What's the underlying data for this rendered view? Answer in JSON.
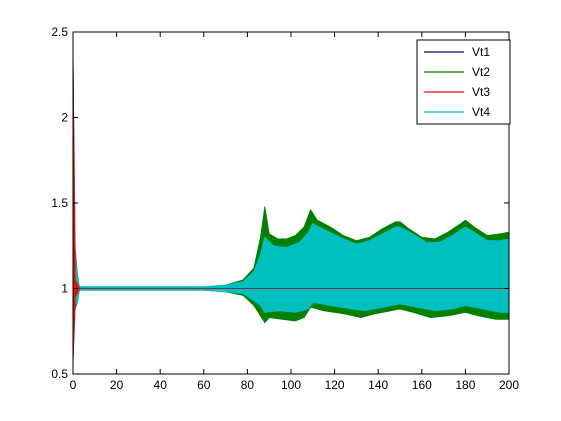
{
  "chart_data": {
    "type": "line",
    "title": "",
    "xlabel": "",
    "ylabel": "",
    "xlim": [
      0,
      200
    ],
    "ylim": [
      0.5,
      2.5
    ],
    "xticks": [
      0,
      20,
      40,
      60,
      80,
      100,
      120,
      140,
      160,
      180,
      200
    ],
    "yticks": [
      0.5,
      1,
      1.5,
      2,
      2.5
    ],
    "grid": false,
    "legend_position": "top-right",
    "series": [
      {
        "name": "Vt1",
        "color": "#000080",
        "envelope_upper": [
          [
            0,
            2.4
          ],
          [
            1,
            1.05
          ],
          [
            3,
            1.0
          ],
          [
            75,
            1.0
          ],
          [
            200,
            1.0
          ]
        ],
        "envelope_lower": [
          [
            0,
            0.55
          ],
          [
            1,
            0.95
          ],
          [
            3,
            1.0
          ],
          [
            75,
            1.0
          ],
          [
            200,
            1.0
          ]
        ]
      },
      {
        "name": "Vt2",
        "color": "#008000",
        "envelope_upper": [
          [
            0,
            2.4
          ],
          [
            1,
            1.24
          ],
          [
            2,
            1.08
          ],
          [
            3,
            1.01
          ],
          [
            60,
            1.01
          ],
          [
            70,
            1.02
          ],
          [
            78,
            1.05
          ],
          [
            83,
            1.12
          ],
          [
            86,
            1.3
          ],
          [
            88,
            1.48
          ],
          [
            90,
            1.32
          ],
          [
            94,
            1.29
          ],
          [
            98,
            1.29
          ],
          [
            102,
            1.31
          ],
          [
            106,
            1.36
          ],
          [
            109,
            1.46
          ],
          [
            112,
            1.4
          ],
          [
            118,
            1.36
          ],
          [
            124,
            1.31
          ],
          [
            130,
            1.28
          ],
          [
            136,
            1.3
          ],
          [
            142,
            1.35
          ],
          [
            148,
            1.39
          ],
          [
            150,
            1.39
          ],
          [
            154,
            1.35
          ],
          [
            160,
            1.3
          ],
          [
            166,
            1.29
          ],
          [
            172,
            1.33
          ],
          [
            178,
            1.38
          ],
          [
            180,
            1.4
          ],
          [
            184,
            1.36
          ],
          [
            190,
            1.31
          ],
          [
            196,
            1.32
          ],
          [
            200,
            1.33
          ]
        ],
        "envelope_lower": [
          [
            0,
            0.6
          ],
          [
            1,
            0.88
          ],
          [
            2,
            0.92
          ],
          [
            3,
            0.99
          ],
          [
            60,
            0.99
          ],
          [
            70,
            0.98
          ],
          [
            78,
            0.96
          ],
          [
            83,
            0.9
          ],
          [
            86,
            0.84
          ],
          [
            88,
            0.8
          ],
          [
            90,
            0.83
          ],
          [
            96,
            0.82
          ],
          [
            102,
            0.81
          ],
          [
            106,
            0.83
          ],
          [
            109,
            0.89
          ],
          [
            115,
            0.87
          ],
          [
            125,
            0.85
          ],
          [
            132,
            0.83
          ],
          [
            138,
            0.85
          ],
          [
            146,
            0.87
          ],
          [
            150,
            0.88
          ],
          [
            156,
            0.86
          ],
          [
            164,
            0.83
          ],
          [
            172,
            0.84
          ],
          [
            180,
            0.86
          ],
          [
            186,
            0.84
          ],
          [
            194,
            0.82
          ],
          [
            200,
            0.82
          ]
        ]
      },
      {
        "name": "Vt3",
        "color": "#ff0000",
        "envelope_upper": [
          [
            0,
            2.4
          ],
          [
            1,
            1.05
          ],
          [
            3,
            1.0
          ],
          [
            200,
            1.0
          ]
        ],
        "envelope_lower": [
          [
            0,
            0.55
          ],
          [
            1,
            0.95
          ],
          [
            3,
            1.0
          ],
          [
            200,
            1.0
          ]
        ]
      },
      {
        "name": "Vt4",
        "color": "#00bfbf",
        "envelope_upper": [
          [
            0,
            2.4
          ],
          [
            1,
            1.2
          ],
          [
            2,
            1.06
          ],
          [
            3,
            1.01
          ],
          [
            60,
            1.01
          ],
          [
            70,
            1.02
          ],
          [
            78,
            1.04
          ],
          [
            83,
            1.1
          ],
          [
            86,
            1.2
          ],
          [
            88,
            1.3
          ],
          [
            92,
            1.25
          ],
          [
            98,
            1.24
          ],
          [
            104,
            1.27
          ],
          [
            108,
            1.33
          ],
          [
            110,
            1.38
          ],
          [
            116,
            1.34
          ],
          [
            124,
            1.29
          ],
          [
            130,
            1.26
          ],
          [
            136,
            1.28
          ],
          [
            142,
            1.32
          ],
          [
            148,
            1.36
          ],
          [
            150,
            1.36
          ],
          [
            156,
            1.32
          ],
          [
            162,
            1.27
          ],
          [
            168,
            1.27
          ],
          [
            174,
            1.31
          ],
          [
            180,
            1.36
          ],
          [
            184,
            1.33
          ],
          [
            190,
            1.28
          ],
          [
            196,
            1.28
          ],
          [
            200,
            1.29
          ]
        ],
        "envelope_lower": [
          [
            0,
            0.55
          ],
          [
            1,
            0.9
          ],
          [
            2,
            0.93
          ],
          [
            3,
            0.99
          ],
          [
            60,
            0.99
          ],
          [
            70,
            0.98
          ],
          [
            78,
            0.97
          ],
          [
            83,
            0.93
          ],
          [
            86,
            0.9
          ],
          [
            88,
            0.86
          ],
          [
            94,
            0.87
          ],
          [
            102,
            0.86
          ],
          [
            108,
            0.88
          ],
          [
            110,
            0.92
          ],
          [
            118,
            0.9
          ],
          [
            128,
            0.88
          ],
          [
            134,
            0.87
          ],
          [
            142,
            0.89
          ],
          [
            150,
            0.91
          ],
          [
            158,
            0.89
          ],
          [
            166,
            0.87
          ],
          [
            174,
            0.88
          ],
          [
            180,
            0.9
          ],
          [
            188,
            0.88
          ],
          [
            196,
            0.86
          ],
          [
            200,
            0.86
          ]
        ]
      }
    ]
  }
}
